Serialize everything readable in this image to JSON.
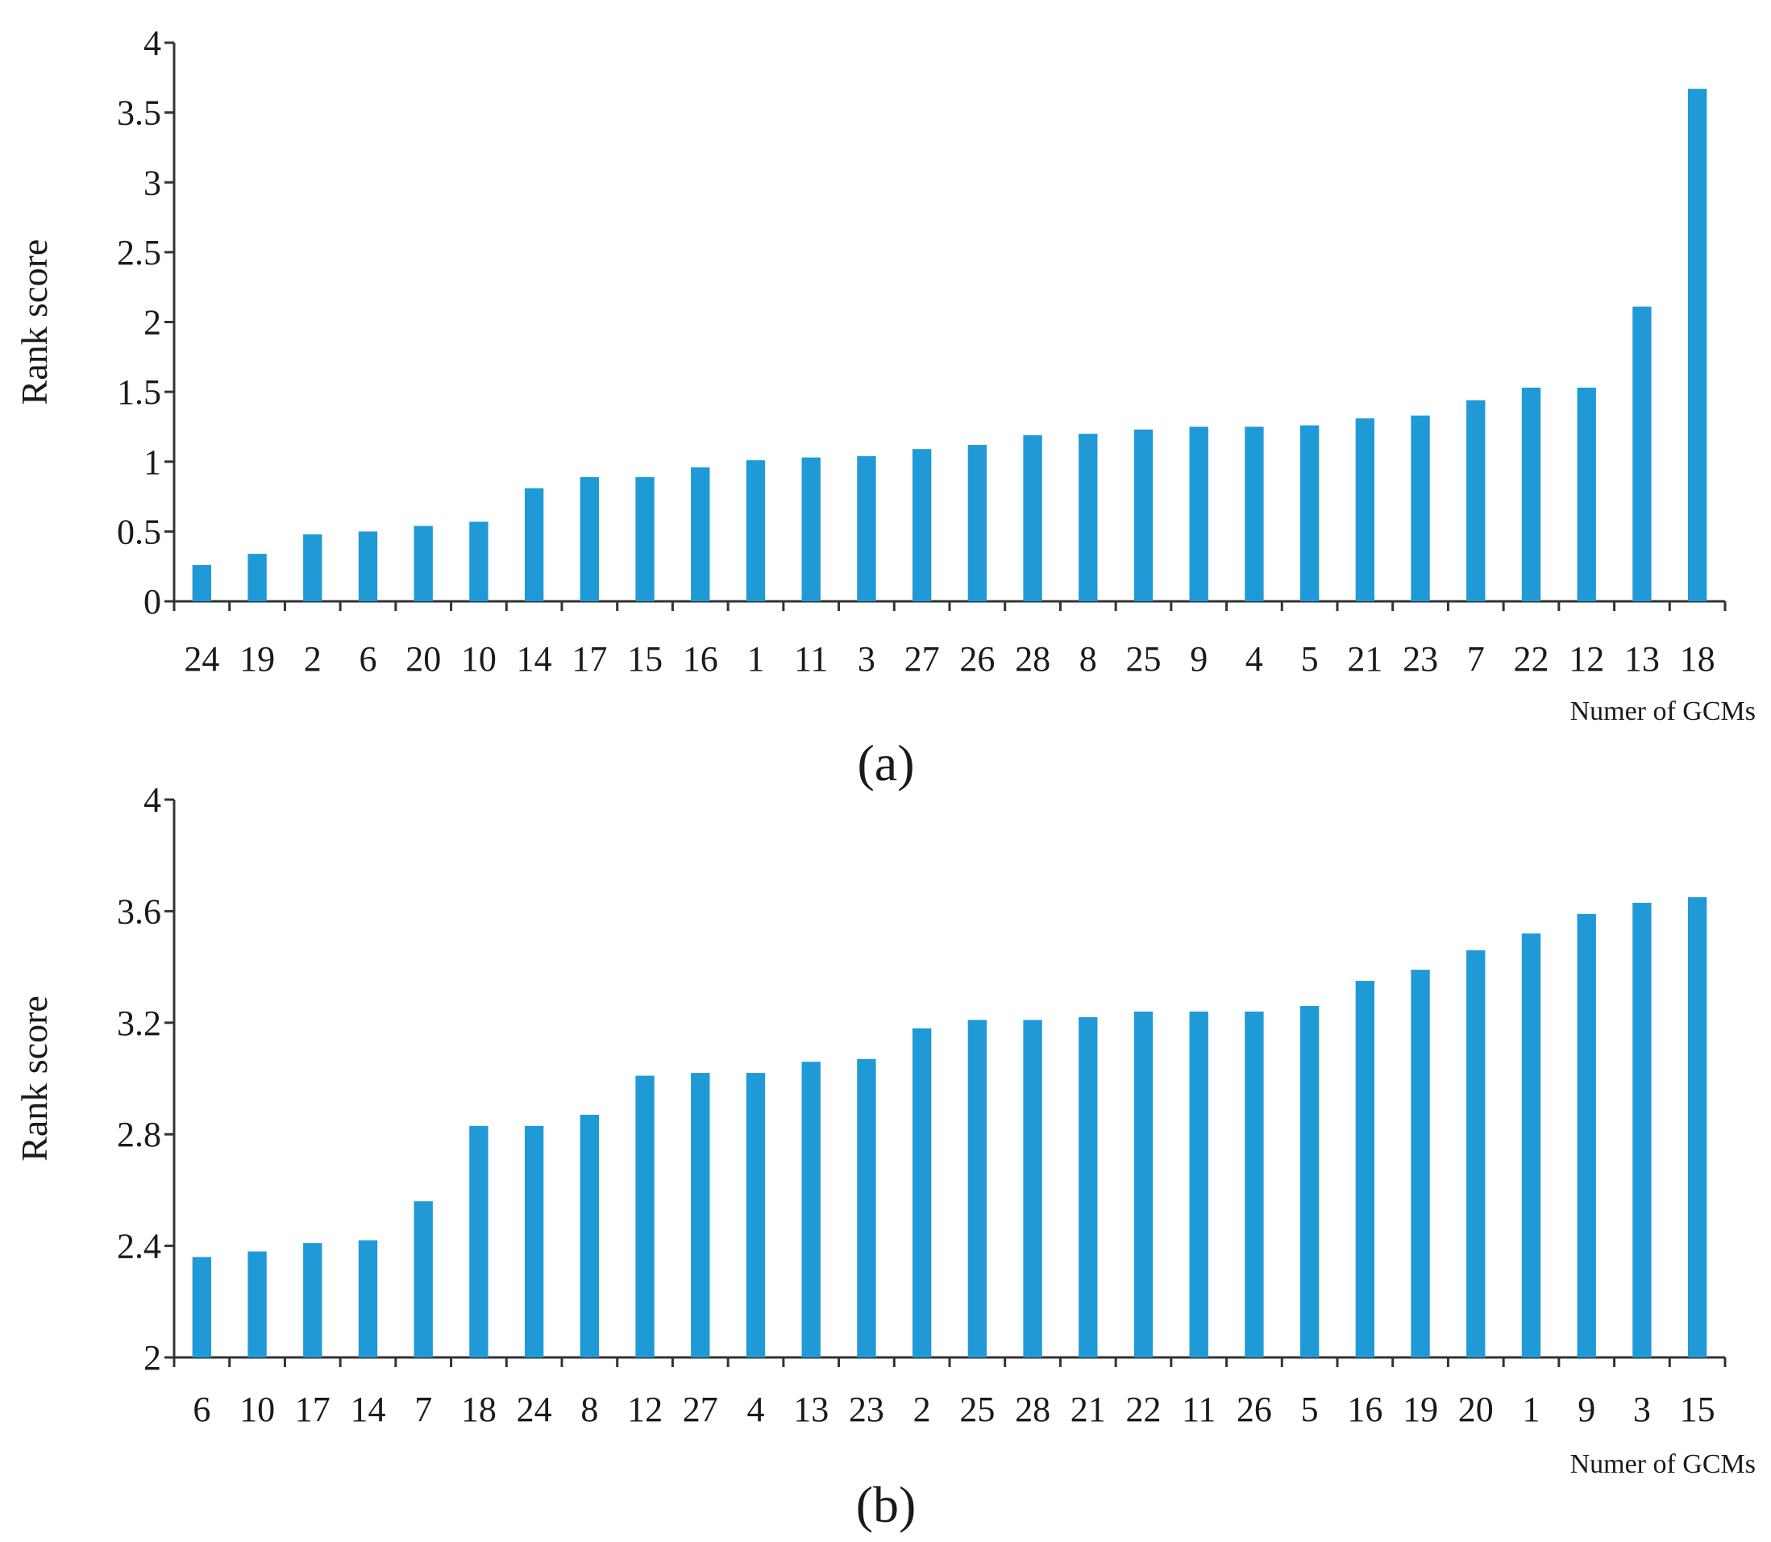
{
  "colors": {
    "bar": "#1f9ad6",
    "axis": "#333333"
  },
  "chart_data": [
    {
      "type": "bar",
      "panel_label": "(a)",
      "title": "",
      "ylabel": "Rank score",
      "xlabel": "Numer of GCMs",
      "ylim": [
        0,
        4
      ],
      "yticks": [
        "0",
        "0.5",
        "1",
        "1.5",
        "2",
        "2.5",
        "3",
        "3.5",
        "4"
      ],
      "ytick_values": [
        0,
        0.5,
        1,
        1.5,
        2,
        2.5,
        3,
        3.5,
        4
      ],
      "categories": [
        "24",
        "19",
        "2",
        "6",
        "20",
        "10",
        "14",
        "17",
        "15",
        "16",
        "1",
        "11",
        "3",
        "27",
        "26",
        "28",
        "8",
        "25",
        "9",
        "4",
        "5",
        "21",
        "23",
        "7",
        "22",
        "12",
        "13",
        "18"
      ],
      "values": [
        0.26,
        0.34,
        0.48,
        0.5,
        0.54,
        0.57,
        0.81,
        0.89,
        0.89,
        0.96,
        1.01,
        1.03,
        1.04,
        1.09,
        1.12,
        1.19,
        1.2,
        1.23,
        1.25,
        1.25,
        1.26,
        1.31,
        1.33,
        1.44,
        1.53,
        1.53,
        2.11,
        3.67
      ]
    },
    {
      "type": "bar",
      "panel_label": "(b)",
      "title": "",
      "ylabel": "Rank score",
      "xlabel": "Numer of GCMs",
      "ylim": [
        2,
        4
      ],
      "yticks": [
        "2",
        "2.4",
        "2.8",
        "3.2",
        "3.6",
        "4"
      ],
      "ytick_values": [
        2,
        2.4,
        2.8,
        3.2,
        3.6,
        4
      ],
      "categories": [
        "6",
        "10",
        "17",
        "14",
        "7",
        "18",
        "24",
        "8",
        "12",
        "27",
        "4",
        "13",
        "23",
        "2",
        "25",
        "28",
        "21",
        "22",
        "11",
        "26",
        "5",
        "16",
        "19",
        "20",
        "1",
        "9",
        "3",
        "15"
      ],
      "values": [
        2.36,
        2.38,
        2.41,
        2.42,
        2.56,
        2.83,
        2.83,
        2.87,
        3.01,
        3.02,
        3.02,
        3.06,
        3.07,
        3.18,
        3.21,
        3.21,
        3.22,
        3.24,
        3.24,
        3.24,
        3.26,
        3.35,
        3.39,
        3.46,
        3.52,
        3.59,
        3.63,
        3.65
      ]
    }
  ]
}
